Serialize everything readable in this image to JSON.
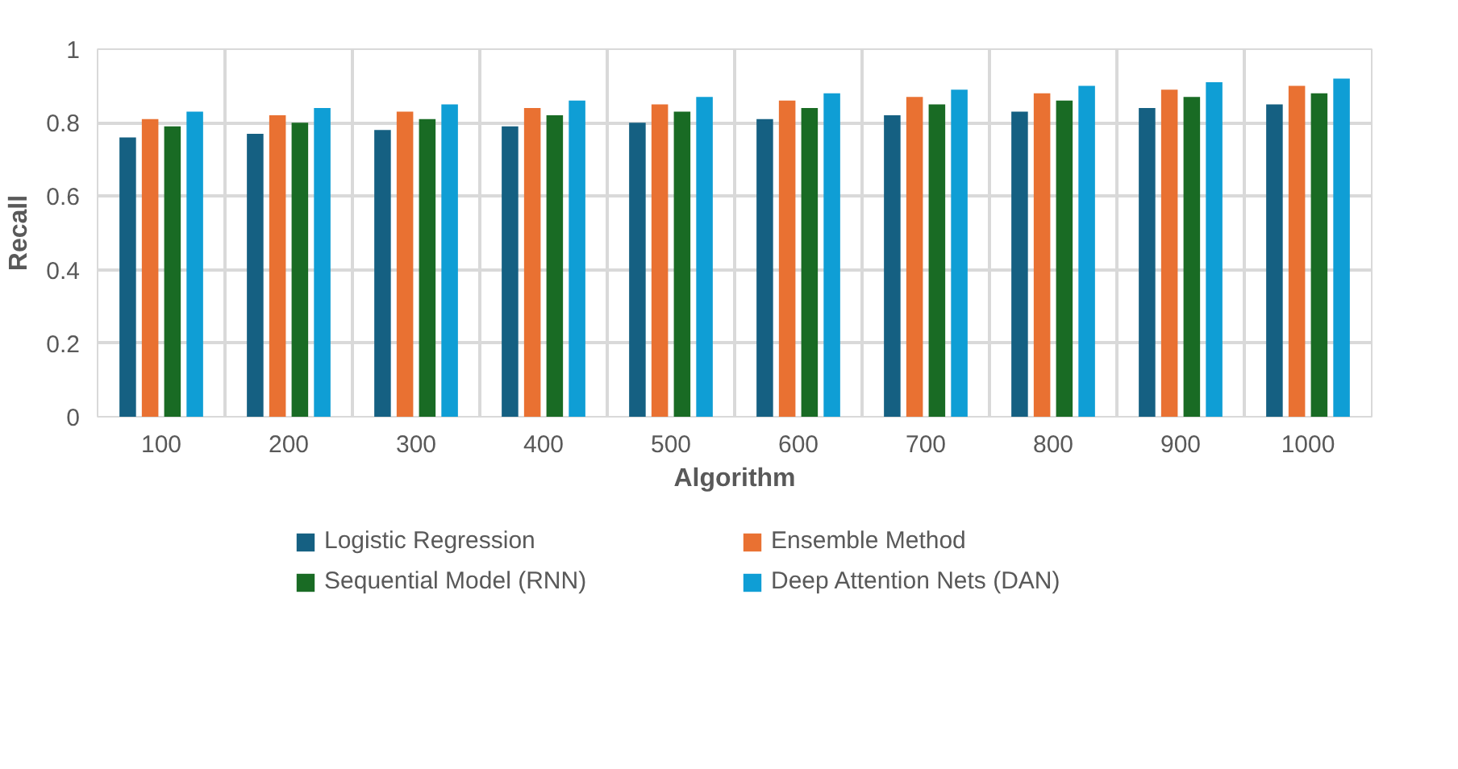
{
  "chart_data": {
    "type": "bar",
    "xlabel": "Algorithm",
    "ylabel": "Recall",
    "categories": [
      "100",
      "200",
      "300",
      "400",
      "500",
      "600",
      "700",
      "800",
      "900",
      "1000"
    ],
    "series": [
      {
        "name": "Logistic Regression",
        "color": "#156082",
        "values": [
          0.76,
          0.77,
          0.78,
          0.79,
          0.8,
          0.81,
          0.82,
          0.83,
          0.84,
          0.85
        ]
      },
      {
        "name": "Ensemble Method",
        "color": "#e97132",
        "values": [
          0.81,
          0.82,
          0.83,
          0.84,
          0.85,
          0.86,
          0.87,
          0.88,
          0.89,
          0.9
        ]
      },
      {
        "name": "Sequential Model (RNN)",
        "color": "#196b24",
        "values": [
          0.79,
          0.8,
          0.81,
          0.82,
          0.83,
          0.84,
          0.85,
          0.86,
          0.87,
          0.88
        ]
      },
      {
        "name": "Deep Attention Nets (DAN)",
        "color": "#0f9ed5",
        "values": [
          0.83,
          0.84,
          0.85,
          0.86,
          0.87,
          0.88,
          0.89,
          0.9,
          0.91,
          0.92
        ]
      }
    ],
    "ylim": [
      0,
      1
    ],
    "yticks": [
      0,
      0.2,
      0.4,
      0.6,
      0.8,
      1
    ],
    "grid": true,
    "legend": "bottom"
  }
}
